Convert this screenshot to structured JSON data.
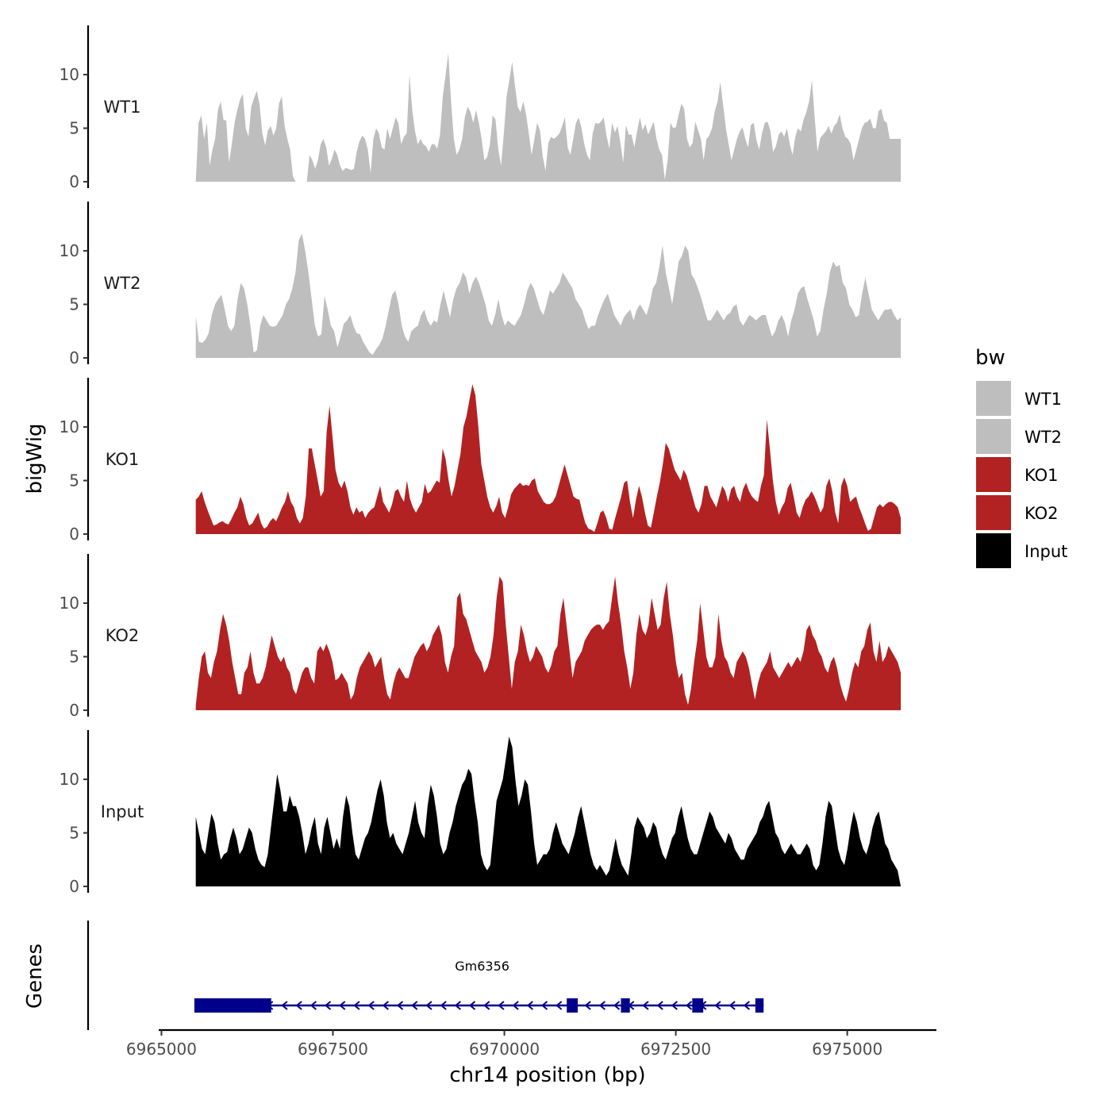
{
  "chart_data": {
    "type": "area",
    "chromosome": "chr14",
    "xlabel": "chr14 position (bp)",
    "ylabel": "bigWig",
    "genes_label": "Genes",
    "xlim": [
      6964960,
      6976300
    ],
    "x_ticks": [
      6965000,
      6967500,
      6970000,
      6972500,
      6975000
    ],
    "x_tick_labels": [
      "6965000",
      "6967500",
      "6970000",
      "6972500",
      "6975000"
    ],
    "ylim": [
      0,
      14.6
    ],
    "y_ticks": [
      0,
      5,
      10
    ],
    "y_tick_labels": [
      "0",
      "5",
      "10"
    ],
    "track_x_start": 6965500,
    "track_x_end": 6975780,
    "legend": {
      "title": "bw",
      "entries": [
        {
          "label": "WT1",
          "color": "#bebebe"
        },
        {
          "label": "WT2",
          "color": "#bebebe"
        },
        {
          "label": "KO1",
          "color": "#b22222"
        },
        {
          "label": "KO2",
          "color": "#b22222"
        },
        {
          "label": "Input",
          "color": "#000000"
        }
      ]
    },
    "series": [
      {
        "name": "WT1",
        "color": "#bebebe",
        "values": [
          0,
          5.5,
          6.2,
          4.0,
          5.5,
          1.5,
          3.0,
          4.0,
          6.7,
          7.5,
          5.8,
          5.7,
          1.8,
          3.5,
          5.5,
          6.7,
          7.7,
          8.2,
          5.0,
          4.2,
          7.0,
          7.8,
          8.5,
          7.2,
          4.5,
          3.4,
          4.8,
          5.2,
          4.3,
          5.0,
          7.3,
          8.0,
          5.2,
          4.0,
          3.0,
          0.5,
          0,
          0,
          0,
          0,
          0,
          2.5,
          2.0,
          1.2,
          2.0,
          3.5,
          4.0,
          3.2,
          1.5,
          2.1,
          3.0,
          2.5,
          1.5,
          1.0,
          1.3,
          1.2,
          1.1,
          1.2,
          2.8,
          3.8,
          4.3,
          4.0,
          3.0,
          0.8,
          4.0,
          5.0,
          4.5,
          3.2,
          3.0,
          5.0,
          4.0,
          5.0,
          6.0,
          5.5,
          3.5,
          4.2,
          4.5,
          10.0,
          6.7,
          4.7,
          3.5,
          4.0,
          3.5,
          3.3,
          2.8,
          3.5,
          3.5,
          3.1,
          4.4,
          8.0,
          10.0,
          12.0,
          7.5,
          4.0,
          2.5,
          3.0,
          4.0,
          6.1,
          7.0,
          6.5,
          5.5,
          6.7,
          5.5,
          4.0,
          2.0,
          2.3,
          3.5,
          6.2,
          5.8,
          3.0,
          1.5,
          4.5,
          8.0,
          9.5,
          11.2,
          9.0,
          7.0,
          6.5,
          7.5,
          6.3,
          4.5,
          2.5,
          4.0,
          5.5,
          4.8,
          2.4,
          1.0,
          3.6,
          4.2,
          4.0,
          4.2,
          4.5,
          5.2,
          6.0,
          3.2,
          2.5,
          4.0,
          5.5,
          6.0,
          5.0,
          3.5,
          2.5,
          2.0,
          4.5,
          5.5,
          5.4,
          5.6,
          6.0,
          4.3,
          3.1,
          5.5,
          4.6,
          5.2,
          3.6,
          1.8,
          5.3,
          4.4,
          4.4,
          3.2,
          4.7,
          6.0,
          4.8,
          5.4,
          4.4,
          5.0,
          5.6,
          4.0,
          3.0,
          2.5,
          0.2,
          2.0,
          5.5,
          5.0,
          5.1,
          6.3,
          7.3,
          6.8,
          4.0,
          3.2,
          3.6,
          5.6,
          4.8,
          4.0,
          2.0,
          4.0,
          4.3,
          5.0,
          6.6,
          7.5,
          9.3,
          7.2,
          5.0,
          3.5,
          2.0,
          3.0,
          4.0,
          4.7,
          5.1,
          4.0,
          3.2,
          5.3,
          5.5,
          3.9,
          3.0,
          4.5,
          5.5,
          5.6,
          4.8,
          2.8,
          3.3,
          4.4,
          4.7,
          4.2,
          5.0,
          3.5,
          2.5,
          4.2,
          5.0,
          4.7,
          5.8,
          6.5,
          7.5,
          9.5,
          6.0,
          2.8,
          4.1,
          4.4,
          4.7,
          5.2,
          4.5,
          5.2,
          5.5,
          6.3,
          5.0,
          4.2,
          4.0,
          3.5,
          2.0,
          3.0,
          4.0,
          5.0,
          5.5,
          5.6,
          5.9,
          5.0,
          5.0,
          6.6,
          6.8,
          5.7,
          5.5,
          4.0,
          4.0,
          4.0,
          4.0,
          4.0
        ]
      },
      {
        "name": "WT2",
        "color": "#bebebe",
        "values": [
          3.9,
          1.5,
          1.4,
          1.7,
          2.3,
          4.0,
          5.0,
          5.5,
          5.9,
          4.5,
          3.0,
          2.5,
          3.0,
          5.5,
          7.0,
          6.5,
          5.0,
          3.0,
          0.5,
          0.7,
          3.0,
          4.0,
          3.5,
          3.0,
          2.9,
          3.0,
          3.5,
          4.0,
          5.0,
          5.5,
          6.5,
          8.0,
          11.0,
          11.6,
          10.0,
          8.0,
          5.5,
          3.0,
          2.0,
          2.2,
          5.8,
          4.5,
          3.0,
          2.5,
          1.0,
          2.0,
          3.2,
          3.5,
          4.0,
          3.0,
          2.3,
          2.2,
          1.5,
          1.0,
          0.5,
          0.3,
          0.8,
          1.2,
          1.8,
          3.0,
          4.5,
          5.9,
          6.3,
          5.0,
          3.0,
          2.0,
          1.5,
          2.5,
          2.8,
          3.0,
          4.0,
          4.5,
          3.5,
          3.0,
          3.5,
          3.3,
          5.0,
          6.3,
          5.0,
          3.8,
          5.5,
          6.5,
          7.0,
          8.0,
          7.5,
          6.0,
          7.0,
          7.6,
          7.0,
          6.0,
          5.0,
          3.5,
          3.0,
          4.0,
          5.5,
          4.0,
          3.0,
          3.5,
          3.2,
          3.0,
          3.5,
          4.0,
          5.0,
          6.3,
          7.0,
          6.5,
          5.5,
          4.5,
          4.0,
          5.1,
          6.3,
          6.0,
          6.5,
          7.0,
          8.0,
          7.5,
          7.0,
          6.5,
          5.5,
          5.0,
          4.5,
          3.5,
          2.7,
          3.0,
          3.0,
          4.0,
          4.8,
          5.5,
          6.0,
          5.0,
          4.0,
          3.5,
          3.0,
          3.8,
          4.2,
          4.5,
          3.5,
          4.5,
          5.0,
          4.5,
          4.0,
          5.0,
          6.5,
          7.0,
          8.5,
          10.5,
          8.0,
          6.5,
          5.0,
          7.0,
          9.0,
          9.5,
          10.5,
          10.0,
          7.8,
          7.3,
          6.5,
          5.6,
          4.5,
          3.5,
          3.5,
          4.0,
          4.5,
          4.0,
          3.5,
          4.0,
          4.2,
          4.8,
          5.0,
          3.5,
          3.0,
          3.5,
          4.0,
          3.8,
          3.5,
          3.8,
          4.0,
          4.0,
          3.0,
          2.0,
          2.5,
          3.5,
          4.0,
          3.3,
          2.0,
          3.5,
          4.5,
          6.0,
          6.5,
          6.7,
          5.5,
          4.5,
          3.5,
          2.0,
          2.5,
          4.5,
          6.0,
          8.0,
          9.0,
          8.5,
          8.7,
          7.0,
          6.5,
          5.0,
          4.5,
          3.8,
          4.0,
          6.0,
          7.5,
          6.0,
          4.5,
          4.0,
          3.5,
          4.0,
          4.5,
          4.5,
          4.6,
          4.0,
          3.5,
          3.8
        ]
      },
      {
        "name": "KO1",
        "color": "#b22222",
        "values": [
          3.2,
          3.5,
          4.0,
          3.0,
          2.2,
          1.5,
          0.8,
          0.9,
          1.1,
          1.2,
          1.0,
          0.9,
          1.4,
          2.0,
          2.5,
          3.5,
          2.8,
          1.5,
          0.8,
          1.0,
          1.5,
          2.0,
          1.0,
          0.5,
          0.7,
          1.2,
          1.5,
          1.2,
          1.8,
          2.5,
          3.0,
          4.0,
          3.0,
          2.5,
          1.5,
          1.0,
          1.5,
          3.5,
          8.0,
          8.0,
          6.5,
          5.0,
          3.5,
          4.0,
          9.5,
          12.0,
          9.0,
          6.0,
          4.8,
          4.3,
          5.0,
          4.0,
          2.5,
          1.8,
          2.5,
          2.0,
          2.2,
          1.5,
          2.0,
          2.3,
          2.5,
          3.5,
          4.5,
          3.0,
          2.5,
          2.0,
          2.8,
          4.0,
          4.2,
          3.5,
          3.0,
          5.0,
          3.3,
          2.5,
          2.0,
          2.5,
          3.0,
          4.7,
          3.8,
          4.0,
          4.5,
          5.0,
          4.8,
          8.0,
          7.0,
          5.0,
          3.5,
          4.5,
          6.0,
          7.5,
          10.0,
          11.0,
          12.5,
          14.0,
          13.0,
          10.0,
          6.5,
          5.0,
          3.5,
          2.5,
          2.0,
          2.6,
          3.5,
          2.0,
          1.5,
          2.5,
          3.7,
          4.2,
          4.5,
          4.8,
          4.5,
          4.6,
          4.5,
          5.0,
          5.2,
          4.0,
          3.5,
          3.0,
          2.8,
          2.8,
          3.0,
          3.5,
          4.5,
          5.5,
          6.5,
          5.5,
          4.5,
          3.5,
          3.3,
          3.2,
          2.0,
          1.0,
          0.5,
          0.4,
          0.2,
          1.0,
          2.0,
          2.2,
          1.5,
          0.5,
          0.4,
          1.5,
          2.5,
          3.5,
          4.8,
          5.0,
          3.0,
          1.5,
          3.2,
          4.5,
          3.5,
          2.0,
          0.8,
          0.6,
          2.0,
          3.5,
          4.8,
          6.5,
          8.5,
          8.0,
          7.0,
          6.0,
          5.5,
          5.0,
          6.0,
          5.5,
          4.5,
          3.5,
          2.5,
          2.0,
          2.8,
          4.5,
          4.5,
          3.5,
          3.0,
          2.5,
          3.5,
          4.5,
          4.0,
          3.0,
          4.2,
          4.5,
          3.5,
          3.0,
          4.2,
          4.8,
          4.0,
          3.5,
          3.2,
          3.0,
          4.5,
          5.5,
          10.7,
          8.0,
          5.0,
          3.0,
          1.8,
          2.5,
          3.0,
          4.3,
          4.8,
          3.5,
          2.0,
          1.5,
          2.5,
          3.2,
          3.5,
          4.0,
          3.5,
          2.8,
          2.0,
          2.5,
          4.5,
          5.2,
          4.0,
          2.0,
          1.0,
          4.5,
          5.3,
          4.5,
          3.0,
          3.3,
          3.5,
          2.5,
          1.8,
          1.0,
          0.3,
          0.5,
          1.5,
          2.5,
          2.8,
          2.5,
          2.8,
          3.0,
          3.0,
          2.8,
          2.5,
          1.5
        ]
      },
      {
        "name": "KO2",
        "color": "#b22222",
        "values": [
          0.5,
          3.0,
          5.0,
          5.5,
          3.5,
          3.0,
          4.5,
          5.5,
          7.5,
          9.0,
          8.0,
          6.5,
          4.5,
          3.0,
          1.5,
          1.5,
          3.5,
          4.0,
          5.5,
          3.5,
          2.5,
          2.5,
          3.0,
          4.0,
          5.5,
          7.0,
          6.0,
          5.0,
          4.5,
          5.0,
          4.0,
          3.5,
          2.0,
          1.5,
          2.5,
          3.5,
          4.0,
          4.0,
          3.0,
          2.5,
          5.5,
          6.0,
          5.5,
          6.2,
          5.5,
          4.5,
          2.8,
          3.0,
          3.5,
          3.0,
          2.5,
          1.0,
          1.5,
          3.0,
          4.0,
          4.5,
          5.0,
          5.5,
          5.0,
          4.0,
          4.5,
          5.0,
          3.0,
          1.5,
          1.0,
          2.5,
          3.5,
          4.0,
          3.5,
          3.0,
          3.0,
          4.0,
          5.0,
          5.5,
          6.0,
          6.3,
          5.5,
          6.0,
          7.0,
          7.5,
          8.0,
          7.0,
          4.5,
          3.5,
          5.0,
          6.0,
          10.5,
          11.0,
          9.0,
          8.5,
          7.5,
          6.5,
          5.5,
          5.0,
          4.5,
          3.5,
          4.0,
          5.0,
          7.0,
          10.5,
          12.5,
          12.0,
          8.0,
          5.0,
          2.0,
          4.5,
          5.5,
          8.0,
          7.0,
          5.5,
          4.5,
          5.0,
          6.0,
          5.5,
          5.0,
          4.0,
          3.5,
          4.2,
          5.5,
          6.0,
          9.0,
          10.5,
          8.0,
          5.5,
          3.0,
          4.5,
          5.0,
          5.5,
          6.5,
          7.0,
          7.5,
          7.8,
          8.0,
          8.0,
          7.5,
          8.0,
          8.3,
          10.5,
          12.5,
          10.0,
          8.0,
          5.5,
          4.0,
          2.0,
          3.5,
          7.0,
          9.0,
          7.5,
          7.0,
          8.0,
          10.5,
          9.0,
          7.5,
          8.0,
          10.5,
          12.0,
          9.0,
          7.0,
          4.5,
          3.0,
          3.5,
          1.5,
          0.5,
          2.0,
          4.5,
          6.5,
          10.0,
          7.5,
          5.0,
          4.0,
          4.0,
          5.0,
          9.0,
          6.5,
          5.0,
          4.5,
          3.5,
          3.0,
          4.5,
          5.0,
          5.5,
          5.0,
          4.0,
          2.5,
          1.0,
          2.5,
          3.5,
          4.0,
          4.5,
          5.5,
          4.0,
          3.5,
          3.0,
          3.5,
          4.0,
          4.5,
          4.0,
          4.5,
          5.0,
          4.5,
          5.5,
          7.5,
          8.0,
          7.0,
          6.5,
          5.5,
          5.0,
          4.0,
          3.5,
          4.5,
          5.0,
          4.0,
          2.5,
          1.5,
          0.8,
          2.0,
          3.5,
          4.5,
          4.0,
          5.5,
          6.0,
          7.5,
          8.2,
          5.5,
          4.5,
          6.5,
          4.5,
          5.0,
          6.0,
          5.5,
          5.0,
          4.5,
          3.5
        ]
      },
      {
        "name": "Input",
        "color": "#000000",
        "values": [
          6.5,
          5.0,
          3.5,
          3.0,
          5.0,
          6.8,
          6.0,
          4.0,
          2.5,
          3.0,
          3.2,
          4.5,
          5.5,
          4.5,
          3.0,
          3.5,
          4.5,
          5.5,
          5.0,
          3.5,
          2.5,
          2.0,
          1.8,
          3.0,
          5.5,
          8.0,
          10.5,
          9.0,
          7.0,
          7.0,
          8.5,
          7.5,
          7.5,
          6.5,
          5.0,
          3.0,
          4.0,
          5.5,
          6.5,
          4.0,
          3.0,
          5.5,
          6.5,
          5.0,
          3.5,
          4.5,
          3.5,
          6.5,
          8.5,
          7.5,
          5.0,
          3.0,
          2.5,
          3.5,
          4.5,
          5.0,
          6.0,
          7.5,
          9.0,
          10.0,
          8.5,
          6.0,
          4.5,
          5.0,
          4.0,
          3.5,
          3.0,
          4.0,
          5.0,
          6.5,
          8.0,
          6.0,
          5.0,
          4.5,
          7.5,
          9.5,
          8.5,
          6.5,
          4.0,
          3.0,
          3.5,
          5.0,
          6.0,
          7.5,
          8.5,
          9.5,
          10.0,
          11.0,
          10.5,
          8.0,
          6.0,
          3.0,
          2.0,
          1.5,
          2.0,
          5.0,
          8.0,
          9.0,
          10.0,
          12.0,
          14.0,
          13.0,
          10.0,
          7.5,
          8.5,
          10.0,
          9.5,
          7.0,
          4.0,
          2.0,
          2.5,
          3.0,
          3.0,
          3.5,
          5.0,
          6.0,
          5.0,
          4.0,
          3.5,
          3.0,
          4.0,
          5.0,
          6.5,
          7.5,
          6.0,
          4.5,
          3.0,
          2.0,
          1.5,
          2.0,
          1.5,
          1.0,
          1.5,
          3.0,
          4.5,
          3.0,
          2.0,
          1.5,
          1.0,
          3.0,
          5.5,
          6.5,
          6.0,
          5.5,
          4.5,
          5.0,
          6.0,
          5.5,
          4.0,
          3.0,
          2.5,
          3.5,
          4.5,
          5.0,
          6.5,
          7.5,
          6.0,
          4.5,
          3.5,
          3.0,
          3.0,
          4.0,
          5.0,
          6.0,
          7.0,
          6.5,
          5.5,
          5.0,
          4.5,
          4.0,
          5.0,
          4.5,
          3.5,
          3.0,
          2.5,
          2.5,
          3.5,
          4.0,
          4.5,
          5.0,
          6.0,
          6.5,
          7.5,
          8.0,
          6.5,
          5.0,
          4.5,
          3.5,
          3.0,
          3.5,
          4.0,
          3.5,
          3.0,
          3.0,
          3.5,
          4.0,
          3.5,
          2.0,
          1.5,
          2.0,
          4.0,
          6.5,
          8.0,
          7.5,
          5.5,
          3.5,
          2.5,
          2.0,
          3.5,
          5.5,
          7.0,
          6.0,
          4.5,
          3.5,
          3.0,
          4.0,
          5.5,
          6.5,
          7.0,
          5.5,
          4.0,
          3.5,
          2.5,
          2.0,
          1.5,
          0
        ]
      }
    ],
    "genes": [
      {
        "name": "Gm6356",
        "start": 6965480,
        "end": 6973780,
        "strand": "-",
        "color": "#00008b",
        "exons": [
          [
            6965480,
            6966600
          ],
          [
            6970910,
            6971070
          ],
          [
            6971700,
            6971830
          ],
          [
            6972740,
            6972900
          ],
          [
            6973660,
            6973780
          ]
        ]
      }
    ]
  }
}
